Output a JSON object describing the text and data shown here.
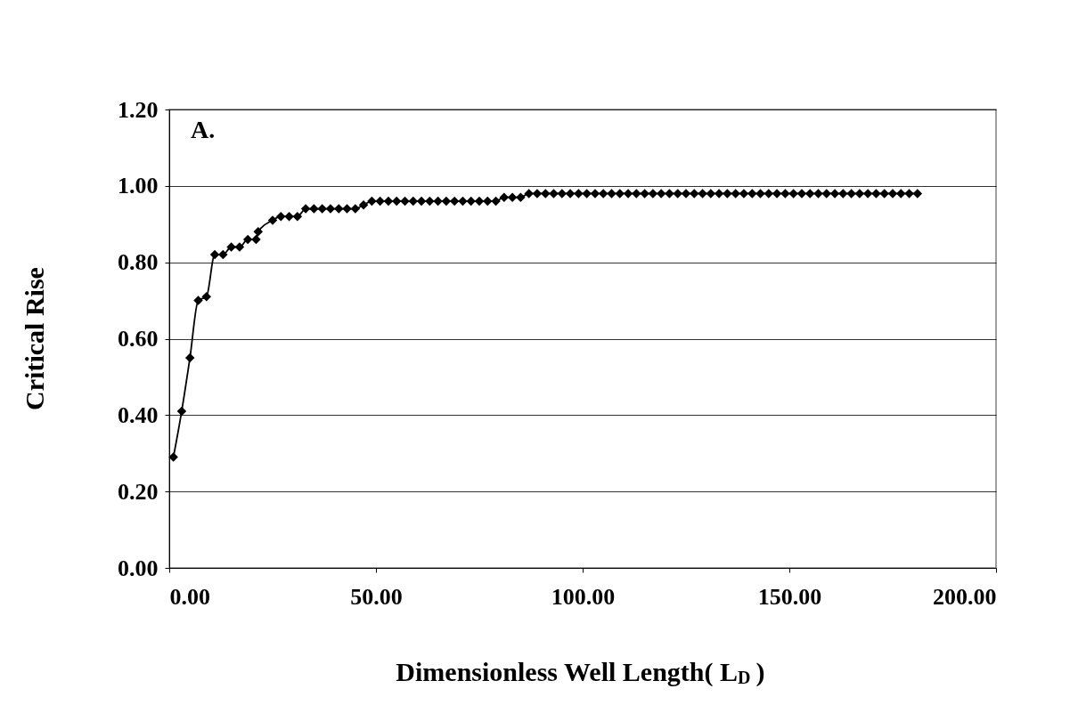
{
  "chart_data": {
    "type": "line",
    "xlabel": "Dimensionless Well Length( L$_{D}$)",
    "ylabel": "Critical Rise",
    "annotations": [
      "A."
    ],
    "x": [
      1,
      3,
      5,
      7,
      9,
      11,
      13,
      15,
      17,
      19,
      21,
      21.5,
      25,
      27,
      29,
      31,
      33,
      35,
      37,
      39,
      41,
      43,
      45,
      47,
      49,
      51,
      53,
      55,
      57,
      59,
      61,
      63,
      65,
      67,
      69,
      71,
      73,
      75,
      77,
      79,
      81,
      83,
      85,
      87,
      89,
      91,
      93,
      95,
      97,
      99,
      101,
      103,
      105,
      107,
      109,
      111,
      113,
      115,
      117,
      119,
      121,
      123,
      125,
      127,
      129,
      131,
      133,
      135,
      137,
      139,
      141,
      143,
      145,
      147,
      149,
      151,
      153,
      155,
      157,
      159,
      161,
      163,
      165,
      167,
      169,
      171,
      173,
      175,
      177,
      179,
      181
    ],
    "series": [
      {
        "color": "#000000",
        "values": [
          0.29,
          0.41,
          0.55,
          0.7,
          0.71,
          0.82,
          0.82,
          0.84,
          0.84,
          0.86,
          0.86,
          0.88,
          0.91,
          0.92,
          0.92,
          0.92,
          0.94,
          0.94,
          0.94,
          0.94,
          0.94,
          0.94,
          0.94,
          0.95,
          0.96,
          0.96,
          0.96,
          0.96,
          0.96,
          0.96,
          0.96,
          0.96,
          0.96,
          0.96,
          0.96,
          0.96,
          0.96,
          0.96,
          0.96,
          0.96,
          0.97,
          0.97,
          0.97,
          0.98,
          0.98,
          0.98,
          0.98,
          0.98,
          0.98,
          0.98,
          0.98,
          0.98,
          0.98,
          0.98,
          0.98,
          0.98,
          0.98,
          0.98,
          0.98,
          0.98,
          0.98,
          0.98,
          0.98,
          0.98,
          0.98,
          0.98,
          0.98,
          0.98,
          0.98,
          0.98,
          0.98,
          0.98,
          0.98,
          0.98,
          0.98,
          0.98,
          0.98,
          0.98,
          0.98,
          0.98,
          0.98,
          0.98,
          0.98,
          0.98,
          0.98,
          0.98,
          0.98,
          0.98,
          0.98,
          0.98,
          0.98
        ]
      }
    ],
    "xlim": [
      0,
      200
    ],
    "ylim": [
      0,
      1.2
    ],
    "xticks": [
      {
        "value": 0,
        "label": "0.00"
      },
      {
        "value": 50,
        "label": "50.00"
      },
      {
        "value": 100,
        "label": "100.00"
      },
      {
        "value": 150,
        "label": "150.00"
      },
      {
        "value": 200,
        "label": "200.00"
      }
    ],
    "yticks": [
      {
        "value": 0,
        "label": "0.00"
      },
      {
        "value": 0.2,
        "label": "0.20"
      },
      {
        "value": 0.4,
        "label": "0.40"
      },
      {
        "value": 0.6,
        "label": "0.60"
      },
      {
        "value": 0.8,
        "label": "0.80"
      },
      {
        "value": 1.0,
        "label": "1.00"
      },
      {
        "value": 1.2,
        "label": "1.20"
      }
    ],
    "grid": "y",
    "marker": "diamond",
    "line_style": "solid"
  }
}
